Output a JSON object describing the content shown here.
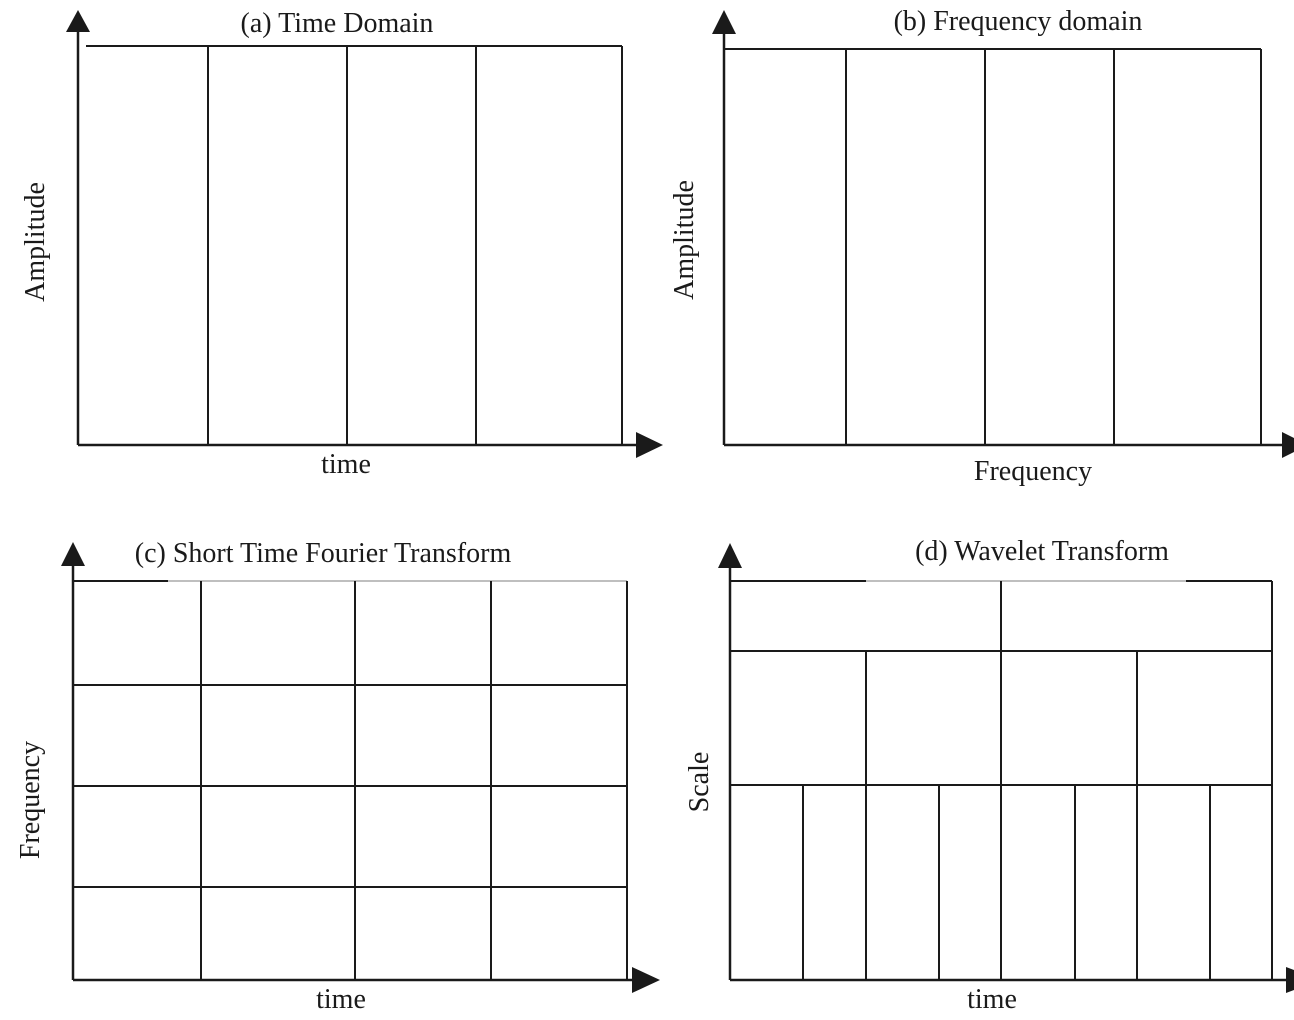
{
  "colors": {
    "ink": "#1a1a1a",
    "background": "#ffffff"
  },
  "panels": [
    {
      "id": "a",
      "title": "(a) Time Domain",
      "xlabel": "time",
      "ylabel": "Amplitude",
      "tiling": "time-domain",
      "cells": {
        "time_divisions": 4,
        "frequency_divisions": 1
      }
    },
    {
      "id": "b",
      "title": "(b) Frequency domain",
      "xlabel": "Frequency",
      "ylabel": "Amplitude",
      "tiling": "frequency-domain",
      "cells": {
        "frequency_divisions": 4,
        "time_divisions": 1
      }
    },
    {
      "id": "c",
      "title": "(c) Short Time Fourier Transform",
      "xlabel": "time",
      "ylabel": "Frequency",
      "tiling": "uniform-grid",
      "cells": {
        "time_divisions": 4,
        "frequency_divisions": 4
      }
    },
    {
      "id": "d",
      "title": "(d) Wavelet Transform",
      "xlabel": "time",
      "ylabel": "Scale",
      "tiling": "dyadic",
      "cells": {
        "rows_time_divisions": [
          2,
          4,
          8
        ]
      }
    }
  ]
}
